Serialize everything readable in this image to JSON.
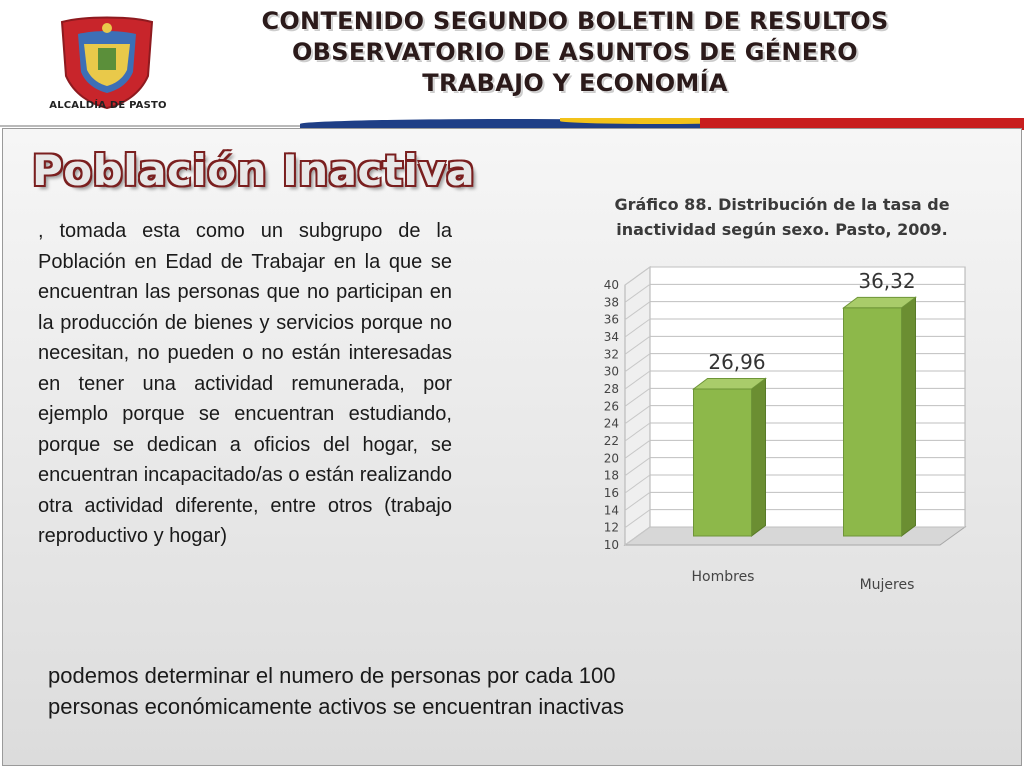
{
  "header": {
    "logo_caption": "ALCALDÍA DE PASTO",
    "title_lines": [
      "CONTENIDO SEGUNDO BOLETIN DE RESULTOS",
      "OBSERVATORIO DE ASUNTOS DE GÉNERO",
      "TRABAJO Y ECONOMÍA"
    ]
  },
  "section": {
    "title": "Población Inactiva",
    "body": ", tomada esta como un subgrupo de la Población en Edad de Trabajar en la que se encuentran las personas que no participan en la producción de bienes y servicios porque no necesitan, no pueden o no están interesadas en tener una actividad remunerada, por ejemplo porque se encuentran estudiando, porque se dedican a oficios del hogar, se encuentran incapacitado/as o están realizando otra actividad diferente, entre otros (trabajo reproductivo y hogar)",
    "bottom": "podemos determinar el numero de personas por cada 100 personas económicamente activos se encuentran inactivas"
  },
  "colors": {
    "bar_front": "#8db84a",
    "bar_side": "#6b8e32",
    "bar_top": "#a9cc6a",
    "title_outline": "#7a1f1f",
    "flag_red": "#c81e1e",
    "flag_yellow": "#f2c21a",
    "flag_blue": "#1f3f86"
  },
  "chart_data": {
    "type": "bar",
    "title": "Gráfico 88. Distribución de la tasa de inactividad según sexo. Pasto, 2009.",
    "categories": [
      "Hombres",
      "Mujeres"
    ],
    "values": [
      26.96,
      36.32
    ],
    "value_labels": [
      "26,96",
      "36,32"
    ],
    "ylim": [
      10,
      40
    ],
    "yticks": [
      10,
      12,
      14,
      16,
      18,
      20,
      22,
      24,
      26,
      28,
      30,
      32,
      34,
      36,
      38,
      40
    ],
    "grid": true,
    "style": "3d",
    "xlabel": "",
    "ylabel": ""
  }
}
